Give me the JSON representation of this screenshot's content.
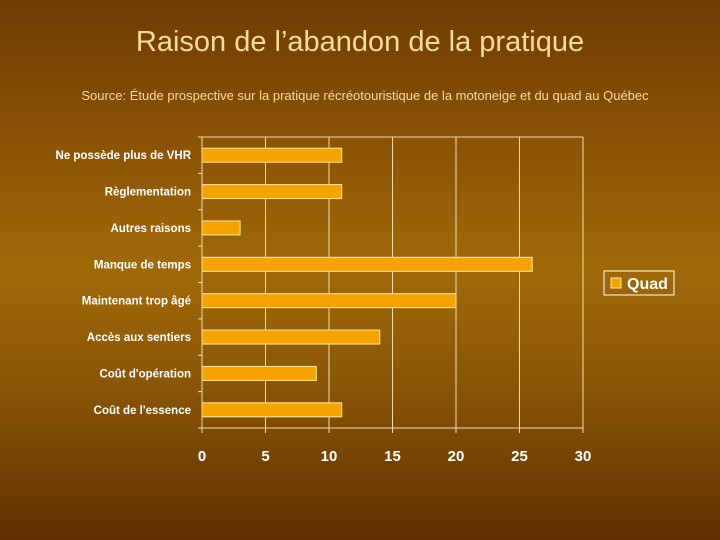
{
  "title": "Raison de l’abandon de la pratique",
  "subtitle": "Source: Étude prospective sur la pratique récréotouristique de la motoneige et du quad au Québec",
  "colors": {
    "bar": "#f5a300",
    "bar_stroke": "#ffe8a0",
    "grid": "#f2dcaa",
    "text": "#ffffff",
    "title": "#f5dc9a"
  },
  "chart_data": {
    "type": "bar",
    "orientation": "horizontal",
    "categories": [
      "Ne possède plus de VHR",
      "Règlementation",
      "Autres raisons",
      "Manque de temps",
      "Maintenant trop âgé",
      "Accès aux sentiers",
      "Coût d'opération",
      "Coût de l'essence"
    ],
    "series": [
      {
        "name": "Quad",
        "values": [
          11,
          11,
          3,
          26,
          20,
          14,
          9,
          11
        ]
      }
    ],
    "xlim": [
      0,
      30
    ],
    "xticks": [
      0,
      5,
      10,
      15,
      20,
      25,
      30
    ],
    "grid": true,
    "legend_position": "right"
  }
}
